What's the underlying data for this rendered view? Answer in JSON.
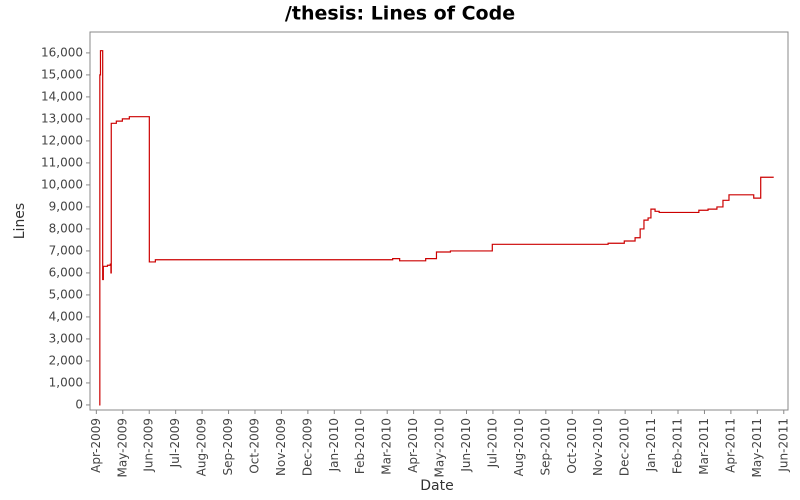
{
  "chart_data": {
    "type": "line",
    "step": true,
    "title": "/thesis: Lines of Code",
    "x_label": "Date",
    "y_label": "Lines",
    "color": "#cc0000",
    "x": [
      2009.259,
      2009.261,
      2009.263,
      2009.27,
      2009.272,
      2009.285,
      2009.294,
      2009.296,
      2009.297,
      2009.313,
      2009.332,
      2009.354,
      2009.417,
      2009.436,
      2010.184,
      2010.206,
      2010.288,
      2010.322,
      2010.366,
      2010.498,
      2010.863,
      2010.914,
      2010.948,
      2010.964,
      2010.976,
      2010.989,
      2010.998,
      2011.011,
      2011.024,
      2011.149,
      2011.178,
      2011.206,
      2011.225,
      2011.244,
      2011.322,
      2011.344,
      2011.385
    ],
    "values": [
      0,
      15000,
      16100,
      5700,
      6300,
      6350,
      6400,
      6000,
      12800,
      12900,
      13000,
      13100,
      6500,
      6600,
      6650,
      6550,
      6650,
      6950,
      7000,
      7300,
      7350,
      7450,
      7600,
      8000,
      8400,
      8500,
      8900,
      8800,
      8750,
      8850,
      8900,
      9000,
      9300,
      9550,
      9400,
      10350,
      10350
    ],
    "xlim": [
      2009.23,
      2011.43
    ],
    "ylim": [
      -230,
      16950
    ],
    "xticks": [
      {
        "value": 2009.25,
        "label": "Apr-2009"
      },
      {
        "value": 2009.3333,
        "label": "May-2009"
      },
      {
        "value": 2009.4167,
        "label": "Jun-2009"
      },
      {
        "value": 2009.5,
        "label": "Jul-2009"
      },
      {
        "value": 2009.5833,
        "label": "Aug-2009"
      },
      {
        "value": 2009.6667,
        "label": "Sep-2009"
      },
      {
        "value": 2009.75,
        "label": "Oct-2009"
      },
      {
        "value": 2009.8333,
        "label": "Nov-2009"
      },
      {
        "value": 2009.9167,
        "label": "Dec-2009"
      },
      {
        "value": 2010,
        "label": "Jan-2010"
      },
      {
        "value": 2010.0833,
        "label": "Feb-2010"
      },
      {
        "value": 2010.1667,
        "label": "Mar-2010"
      },
      {
        "value": 2010.25,
        "label": "Apr-2010"
      },
      {
        "value": 2010.3333,
        "label": "May-2010"
      },
      {
        "value": 2010.4167,
        "label": "Jun-2010"
      },
      {
        "value": 2010.5,
        "label": "Jul-2010"
      },
      {
        "value": 2010.5833,
        "label": "Aug-2010"
      },
      {
        "value": 2010.6667,
        "label": "Sep-2010"
      },
      {
        "value": 2010.75,
        "label": "Oct-2010"
      },
      {
        "value": 2010.8333,
        "label": "Nov-2010"
      },
      {
        "value": 2010.9167,
        "label": "Dec-2010"
      },
      {
        "value": 2011,
        "label": "Jan-2011"
      },
      {
        "value": 2011.0833,
        "label": "Feb-2011"
      },
      {
        "value": 2011.1667,
        "label": "Mar-2011"
      },
      {
        "value": 2011.25,
        "label": "Apr-2011"
      },
      {
        "value": 2011.3333,
        "label": "May-2011"
      },
      {
        "value": 2011.4167,
        "label": "Jun-2011"
      }
    ],
    "yticks": [
      0,
      {
        "value": 1000,
        "label": "1,000"
      },
      {
        "value": 2000,
        "label": "2,000"
      },
      {
        "value": 3000,
        "label": "3,000"
      },
      {
        "value": 4000,
        "label": "4,000"
      },
      {
        "value": 5000,
        "label": "5,000"
      },
      {
        "value": 6000,
        "label": "6,000"
      },
      {
        "value": 7000,
        "label": "7,000"
      },
      {
        "value": 8000,
        "label": "8,000"
      },
      {
        "value": 9000,
        "label": "9,000"
      },
      {
        "value": 10000,
        "label": "10,000"
      },
      {
        "value": 11000,
        "label": "11,000"
      },
      {
        "value": 12000,
        "label": "12,000"
      },
      {
        "value": 13000,
        "label": "13,000"
      },
      {
        "value": 14000,
        "label": "14,000"
      },
      {
        "value": 15000,
        "label": "15,000"
      },
      {
        "value": 16000,
        "label": "16,000"
      }
    ],
    "grid": false
  }
}
